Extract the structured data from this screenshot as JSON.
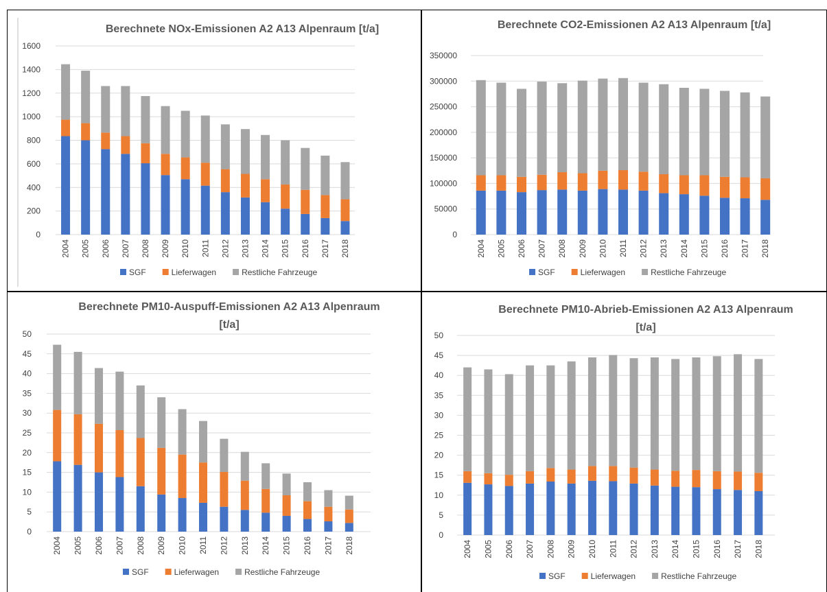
{
  "legend": {
    "sgf": "SGF",
    "lieferwagen": "Lieferwagen",
    "restliche": "Restliche Fahrzeuge"
  },
  "colors": {
    "sgf": "#4472C4",
    "lieferwagen": "#ED7D31",
    "restliche": "#A5A5A5",
    "grid": "#D9D9D9",
    "axis": "#D9D9D9",
    "text": "#404040",
    "title": "#595959"
  },
  "chart_data": [
    {
      "type": "bar",
      "stacked": true,
      "title_lines": [
        "Berechnete NOx-Emissionen A2 A13 Alpenraum [t/a]"
      ],
      "categories": [
        "2004",
        "2005",
        "2006",
        "2007",
        "2008",
        "2009",
        "2010",
        "2011",
        "2012",
        "2013",
        "2014",
        "2015",
        "2016",
        "2017",
        "2018"
      ],
      "series": [
        {
          "name": "SGF",
          "values": [
            835,
            800,
            725,
            685,
            605,
            505,
            470,
            415,
            360,
            315,
            275,
            220,
            175,
            140,
            115
          ]
        },
        {
          "name": "Lieferwagen",
          "values": [
            140,
            145,
            140,
            150,
            170,
            180,
            185,
            195,
            195,
            200,
            195,
            205,
            205,
            195,
            185
          ]
        },
        {
          "name": "Restliche Fahrzeuge",
          "values": [
            470,
            445,
            395,
            425,
            400,
            405,
            395,
            400,
            380,
            380,
            375,
            375,
            355,
            335,
            315
          ]
        }
      ],
      "yticks": [
        "0",
        "200",
        "400",
        "600",
        "800",
        "1000",
        "1200",
        "1400",
        "1600"
      ],
      "ylim": [
        0,
        1600
      ],
      "xlabel": "",
      "ylabel": "",
      "grid": true,
      "legend_position": "bottom"
    },
    {
      "type": "bar",
      "stacked": true,
      "title_lines": [
        "Berechnete CO2-Emissionen A2 A13 Alpenraum [t/a]"
      ],
      "categories": [
        "2004",
        "2005",
        "2006",
        "2007",
        "2008",
        "2009",
        "2010",
        "2011",
        "2012",
        "2013",
        "2014",
        "2015",
        "2016",
        "2017",
        "2018"
      ],
      "series": [
        {
          "name": "SGF",
          "values": [
            86000,
            86000,
            83000,
            87000,
            88000,
            86000,
            89000,
            88000,
            86000,
            81000,
            79000,
            76000,
            72000,
            71000,
            68000
          ]
        },
        {
          "name": "Lieferwagen",
          "values": [
            30000,
            30000,
            30000,
            30000,
            34000,
            34000,
            36000,
            38000,
            37000,
            37000,
            37000,
            40000,
            41000,
            41000,
            42000
          ]
        },
        {
          "name": "Restliche Fahrzeuge",
          "values": [
            186000,
            181000,
            172000,
            182000,
            174000,
            181000,
            180000,
            180000,
            174000,
            176000,
            171000,
            169000,
            168000,
            166000,
            160000
          ]
        }
      ],
      "yticks": [
        "0",
        "50000",
        "100000",
        "150000",
        "200000",
        "250000",
        "300000",
        "350000"
      ],
      "ylim": [
        0,
        350000
      ],
      "xlabel": "",
      "ylabel": "",
      "grid": true,
      "legend_position": "bottom"
    },
    {
      "type": "bar",
      "stacked": true,
      "title_lines": [
        "Berechnete PM10-Auspuff-Emissionen A2 A13 Alpenraum",
        "[t/a]"
      ],
      "categories": [
        "2004",
        "2005",
        "2006",
        "2007",
        "2008",
        "2009",
        "2010",
        "2011",
        "2012",
        "2013",
        "2014",
        "2015",
        "2016",
        "2017",
        "2018"
      ],
      "series": [
        {
          "name": "SGF",
          "values": [
            17.8,
            16.9,
            15.0,
            13.8,
            11.5,
            9.4,
            8.5,
            7.3,
            6.3,
            5.5,
            4.8,
            4.0,
            3.2,
            2.6,
            2.2
          ]
        },
        {
          "name": "Lieferwagen",
          "values": [
            13.0,
            12.8,
            12.3,
            11.9,
            12.2,
            11.8,
            11.0,
            10.2,
            8.8,
            7.4,
            6.0,
            5.2,
            4.5,
            3.7,
            3.4
          ]
        },
        {
          "name": "Restliche Fahrzeuge",
          "values": [
            16.5,
            15.8,
            14.1,
            14.8,
            13.3,
            12.8,
            11.5,
            10.5,
            8.4,
            7.3,
            6.5,
            5.5,
            4.8,
            4.2,
            3.5
          ]
        }
      ],
      "yticks": [
        "0",
        "5",
        "10",
        "15",
        "20",
        "25",
        "30",
        "35",
        "40",
        "45",
        "50"
      ],
      "ylim": [
        0,
        50
      ],
      "xlabel": "",
      "ylabel": "",
      "grid": true,
      "legend_position": "bottom"
    },
    {
      "type": "bar",
      "stacked": true,
      "title_lines": [
        "Berechnete PM10-Abrieb-Emissionen A2 A13 Alpenraum",
        "[t/a]"
      ],
      "categories": [
        "2004",
        "2005",
        "2006",
        "2007",
        "2008",
        "2009",
        "2010",
        "2011",
        "2012",
        "2013",
        "2014",
        "2015",
        "2016",
        "2017",
        "2018"
      ],
      "series": [
        {
          "name": "SGF",
          "values": [
            13.1,
            12.7,
            12.3,
            12.9,
            13.4,
            12.9,
            13.6,
            13.5,
            12.9,
            12.4,
            12.1,
            12.0,
            11.5,
            11.3,
            11.0
          ]
        },
        {
          "name": "Lieferwagen",
          "values": [
            2.9,
            2.8,
            2.8,
            3.1,
            3.4,
            3.5,
            3.7,
            3.8,
            4.0,
            4.0,
            4.0,
            4.3,
            4.5,
            4.6,
            4.6
          ]
        },
        {
          "name": "Restliche Fahrzeuge",
          "values": [
            26.0,
            26.0,
            25.2,
            26.5,
            25.7,
            27.1,
            27.2,
            27.8,
            27.4,
            28.1,
            28.0,
            28.2,
            28.8,
            29.4,
            28.5
          ]
        }
      ],
      "yticks": [
        "0",
        "5",
        "10",
        "15",
        "20",
        "25",
        "30",
        "35",
        "40",
        "45",
        "50"
      ],
      "ylim": [
        0,
        50
      ],
      "xlabel": "",
      "ylabel": "",
      "grid": true,
      "legend_position": "bottom"
    }
  ]
}
